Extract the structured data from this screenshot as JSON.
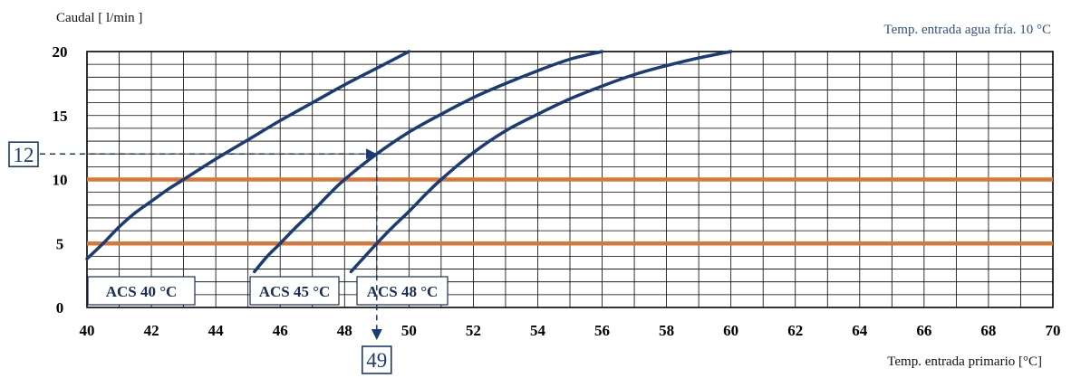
{
  "chart_data": {
    "type": "line",
    "title": "",
    "ylabel": "Caudal [ l/min ]",
    "xlabel": "Temp. entrada primario [°C]",
    "note": "Temp. entrada agua fría.  10 °C",
    "xlim": [
      40,
      70
    ],
    "ylim": [
      0,
      20
    ],
    "x_ticks": [
      "40",
      "42",
      "44",
      "46",
      "48",
      "50",
      "52",
      "54",
      "56",
      "58",
      "60",
      "62",
      "64",
      "66",
      "68",
      "70"
    ],
    "y_ticks": [
      "0",
      "5",
      "10",
      "15",
      "20"
    ],
    "grid": true,
    "series": [
      {
        "name": "ACS 40 °C",
        "x": [
          40.0,
          40.5,
          41.0,
          41.5,
          42.0,
          42.5,
          43.0,
          44.0,
          45.0,
          46.0,
          47.0,
          48.0,
          49.0,
          50.0
        ],
        "y": [
          3.8,
          5.0,
          6.3,
          7.4,
          8.3,
          9.2,
          10.0,
          11.6,
          13.1,
          14.6,
          16.0,
          17.4,
          18.7,
          20.0
        ]
      },
      {
        "name": "ACS 45 °C",
        "x": [
          45.2,
          45.6,
          46.0,
          46.5,
          47.0,
          47.5,
          48.0,
          49.0,
          50.0,
          51.0,
          52.0,
          53.0,
          54.0,
          55.0,
          56.0
        ],
        "y": [
          2.8,
          4.0,
          5.0,
          6.3,
          7.5,
          8.8,
          10.0,
          12.0,
          13.7,
          15.1,
          16.4,
          17.5,
          18.5,
          19.4,
          20.0
        ]
      },
      {
        "name": "ACS 48 °C",
        "x": [
          48.2,
          48.6,
          49.0,
          49.5,
          50.0,
          50.5,
          51.0,
          52.0,
          53.0,
          54.0,
          55.0,
          56.0,
          57.0,
          58.0,
          59.0,
          60.0
        ],
        "y": [
          2.8,
          3.9,
          5.0,
          6.3,
          7.5,
          8.8,
          10.0,
          12.1,
          13.8,
          15.1,
          16.3,
          17.3,
          18.2,
          18.9,
          19.5,
          20.0
        ]
      }
    ],
    "reference_lines_y": [
      5,
      10
    ],
    "example": {
      "y_value": "12",
      "x_value": "49",
      "y": 12,
      "x": 49
    },
    "colors": {
      "curve": "#1a3b73",
      "reference": "#d9773a",
      "grid": "#000000"
    }
  }
}
